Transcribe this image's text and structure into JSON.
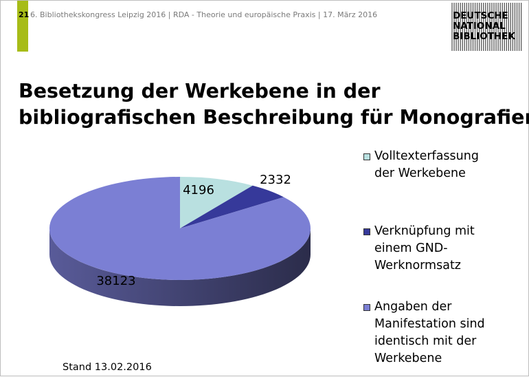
{
  "header": {
    "slide_number": "21",
    "conference": "6. Bibliothekskongress Leipzig 2016 | RDA - Theorie und europäische Praxis | 17. März 2016",
    "logo_lines": [
      "DEUTSCHE",
      "NATIONAL",
      "BIBLIOTHEK"
    ]
  },
  "title_lines": [
    "Besetzung der Werkebene in der",
    "bibliografischen Beschreibung für Monografien"
  ],
  "footer": {
    "stand": "Stand 13.02.2016"
  },
  "colors": {
    "accent": "#a7bc18"
  },
  "chart_data": {
    "type": "pie",
    "variant": "3d",
    "legend_position": "right",
    "slices": [
      {
        "label_lines": [
          "Volltexterfassung",
          "der Werkebene"
        ],
        "value": 4196,
        "value_label": "4196",
        "color": "#b9e0e0"
      },
      {
        "label_lines": [
          "Verknüpfung mit",
          "einem GND-",
          "Werknormsatz"
        ],
        "value": 2332,
        "value_label": "2332",
        "color": "#36399a"
      },
      {
        "label_lines": [
          "Angaben der",
          "Manifestation sind",
          "identisch mit der",
          "Werkebene"
        ],
        "value": 38123,
        "value_label": "38123",
        "color": "#7b7fd4"
      }
    ]
  }
}
